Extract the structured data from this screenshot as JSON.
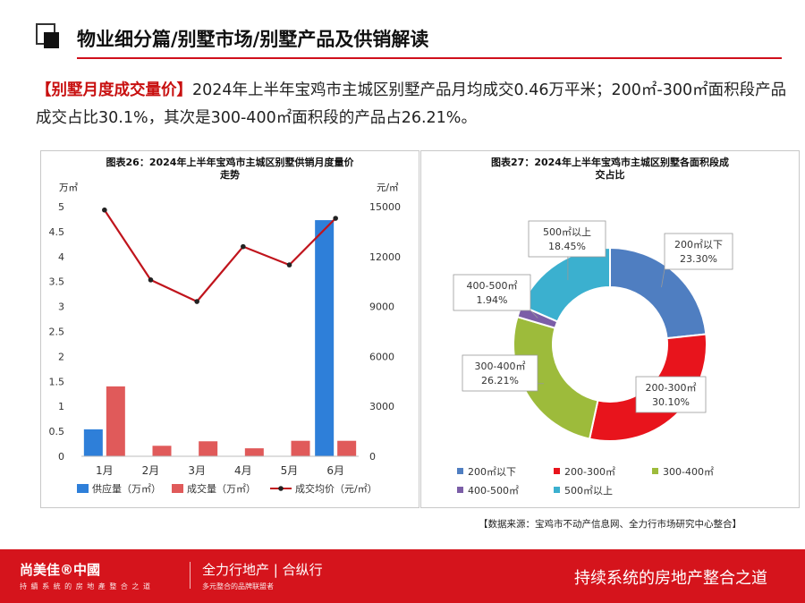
{
  "header": {
    "title": "物业细分篇/别墅市场/别墅产品及供销解读"
  },
  "summary": {
    "tag": "【别墅月度成交量价】",
    "text": "2024年上半年宝鸡市主城区别墅产品月均成交0.46万平米；200㎡-300㎡面积段产品成交占比30.1%，其次是300-400㎡面积段的产品占26.21%。"
  },
  "chart_data": [
    {
      "type": "bar",
      "title_line1": "图表26：2024年上半年宝鸡市主城区别墅供销月度量价",
      "title_line2": "走势",
      "left_unit": "万㎡",
      "right_unit": "元/㎡",
      "categories": [
        "1月",
        "2月",
        "3月",
        "4月",
        "5月",
        "6月"
      ],
      "ylim": [
        0,
        5
      ],
      "yticks": [
        0,
        0.5,
        1,
        1.5,
        2,
        2.5,
        3,
        3.5,
        4,
        4.5,
        5
      ],
      "ytick_labels": [
        "0",
        "0.5",
        "1",
        "1.5",
        "2",
        "2.5",
        "3",
        "3.5",
        "4",
        "4.5",
        "5"
      ],
      "y2lim": [
        0,
        15000
      ],
      "y2ticks": [
        0,
        3000,
        6000,
        9000,
        12000,
        15000
      ],
      "y2tick_labels": [
        "0",
        "3000",
        "6000",
        "9000",
        "12000",
        "15000"
      ],
      "series": [
        {
          "name": "供应量（万㎡）",
          "kind": "bar",
          "axis": "left",
          "color": "#2e7fd9",
          "values": [
            0.54,
            0,
            0,
            0,
            0,
            4.73
          ]
        },
        {
          "name": "成交量（万㎡）",
          "kind": "bar",
          "axis": "left",
          "color": "#e05a5a",
          "values": [
            1.4,
            0.21,
            0.3,
            0.16,
            0.31,
            0.31
          ]
        },
        {
          "name": "成交均价（元/㎡）",
          "kind": "line",
          "axis": "right",
          "color": "#c0141c",
          "values": [
            14800,
            10600,
            9300,
            12600,
            11500,
            14300
          ]
        }
      ],
      "legend_position": "bottom"
    },
    {
      "type": "pie",
      "title_line1": "图表27：2024年上半年宝鸡市主城区别墅各面积段成",
      "title_line2": "交占比",
      "slices": [
        {
          "label": "200㎡以下",
          "value": 23.3,
          "value_label": "23.30%",
          "color": "#4f7ec1"
        },
        {
          "label": "200-300㎡",
          "value": 30.1,
          "value_label": "30.10%",
          "color": "#e8141c"
        },
        {
          "label": "300-400㎡",
          "value": 26.21,
          "value_label": "26.21%",
          "color": "#9dbb3b"
        },
        {
          "label": "400-500㎡",
          "value": 1.94,
          "value_label": "1.94%",
          "color": "#7b5ea7"
        },
        {
          "label": "500㎡以上",
          "value": 18.45,
          "value_label": "18.45%",
          "color": "#3bb0cf"
        }
      ],
      "legend_position": "bottom"
    }
  ],
  "source": "【数据来源：宝鸡市不动产信息网、全力行市场研究中心整合】",
  "footer": {
    "brand": "尚美佳®中國",
    "brand_sub": "持 續 系 統 的 房 地 產 整 合 之 道",
    "brand2": "全力行地产 | 合纵行",
    "brand2_sub": "多元整合的品牌联盟者",
    "slogan": "持续系统的房地产整合之道"
  }
}
